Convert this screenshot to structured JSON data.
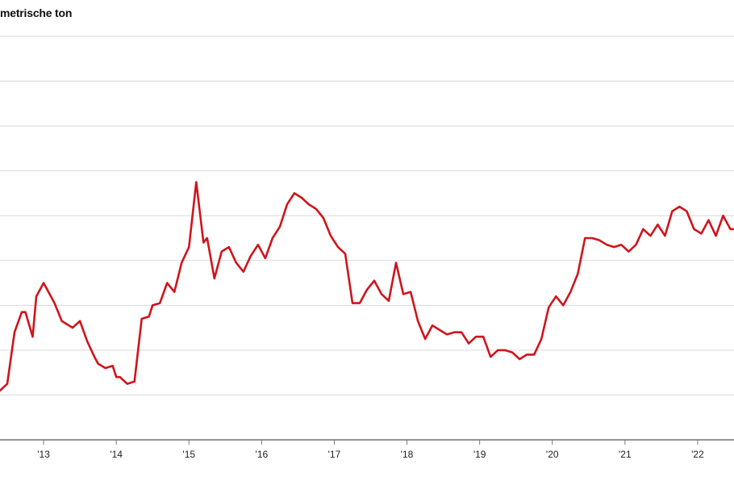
{
  "chart_data": {
    "type": "line",
    "ylabel": "metrische ton",
    "x_tick_labels": [
      "'13",
      "'14",
      "'15",
      "'16",
      "'17",
      "'18",
      "'19",
      "'20",
      "'21",
      "'22"
    ],
    "x_range": [
      2012.4,
      2022.5
    ],
    "y_range": [
      0,
      9
    ],
    "y_gridlines": [
      1,
      2,
      3,
      4,
      5,
      6,
      7,
      8,
      9
    ],
    "grid": true,
    "legend": "none",
    "line_color": "#d0141c",
    "series": [
      {
        "x": [
          2012.4,
          2012.5,
          2012.6,
          2012.7,
          2012.75,
          2012.85,
          2012.9,
          2013.0,
          2013.1,
          2013.15,
          2013.25,
          2013.3,
          2013.4,
          2013.5,
          2013.6,
          2013.7,
          2013.75,
          2013.85,
          2013.95,
          2014.0,
          2014.05,
          2014.15,
          2014.25,
          2014.35,
          2014.45,
          2014.5,
          2014.6,
          2014.7,
          2014.8,
          2014.9,
          2015.0,
          2015.1,
          2015.2,
          2015.25,
          2015.35,
          2015.45,
          2015.55,
          2015.65,
          2015.75,
          2015.85,
          2015.95,
          2016.05,
          2016.15,
          2016.25,
          2016.35,
          2016.45,
          2016.55,
          2016.65,
          2016.75,
          2016.85,
          2016.95,
          2017.05,
          2017.15,
          2017.25,
          2017.35,
          2017.45,
          2017.55,
          2017.65,
          2017.75,
          2017.85,
          2017.95,
          2018.05,
          2018.15,
          2018.25,
          2018.35,
          2018.45,
          2018.55,
          2018.65,
          2018.75,
          2018.85,
          2018.95,
          2019.05,
          2019.15,
          2019.25,
          2019.35,
          2019.45,
          2019.55,
          2019.65,
          2019.75,
          2019.85,
          2019.95,
          2020.05,
          2020.15,
          2020.25,
          2020.35,
          2020.45,
          2020.55,
          2020.65,
          2020.75,
          2020.85,
          2020.95,
          2021.05,
          2021.15,
          2021.25,
          2021.35,
          2021.45,
          2021.55,
          2021.65,
          2021.75,
          2021.85,
          2021.95,
          2022.05,
          2022.15,
          2022.25,
          2022.35,
          2022.45,
          2022.5
        ],
        "values": [
          1.1,
          1.25,
          2.4,
          2.85,
          2.85,
          2.3,
          3.2,
          3.5,
          3.2,
          3.05,
          2.65,
          2.6,
          2.5,
          2.65,
          2.2,
          1.85,
          1.7,
          1.6,
          1.65,
          1.4,
          1.4,
          1.25,
          1.3,
          2.7,
          2.75,
          3.0,
          3.05,
          3.5,
          3.3,
          3.95,
          4.3,
          5.75,
          4.4,
          4.5,
          3.6,
          4.2,
          4.3,
          3.95,
          3.75,
          4.1,
          4.35,
          4.05,
          4.5,
          4.75,
          5.25,
          5.5,
          5.4,
          5.25,
          5.15,
          4.95,
          4.55,
          4.3,
          4.15,
          3.05,
          3.05,
          3.35,
          3.55,
          3.25,
          3.1,
          3.95,
          3.25,
          3.3,
          2.65,
          2.25,
          2.55,
          2.45,
          2.35,
          2.4,
          2.4,
          2.15,
          2.3,
          2.3,
          1.85,
          2.0,
          2.0,
          1.95,
          1.8,
          1.9,
          1.9,
          2.25,
          2.95,
          3.2,
          3.0,
          3.3,
          3.7,
          4.5,
          4.5,
          4.45,
          4.35,
          4.3,
          4.35,
          4.2,
          4.35,
          4.7,
          4.55,
          4.8,
          4.55,
          5.1,
          5.2,
          5.1,
          4.7,
          4.6,
          4.9,
          4.55,
          5.0,
          4.7,
          4.7
        ]
      }
    ]
  }
}
